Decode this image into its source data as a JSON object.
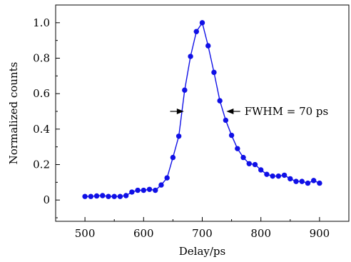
{
  "chart_data": {
    "type": "scatter",
    "title": "",
    "xlabel": "Delay/ps",
    "ylabel": "Normalized counts",
    "xlim": [
      450,
      950
    ],
    "ylim": [
      -0.12,
      1.1
    ],
    "x_ticks": [
      500,
      600,
      700,
      800,
      900
    ],
    "x_tick_labels": [
      "500",
      "600",
      "700",
      "800",
      "900"
    ],
    "y_ticks": [
      0,
      0.2,
      0.4,
      0.6,
      0.8,
      1.0
    ],
    "y_tick_labels": [
      "0",
      "0.2",
      "0.4",
      "0.6",
      "0.8",
      "1.0"
    ],
    "grid": false,
    "legend": "none",
    "series": [
      {
        "marker_color": "#1010e6",
        "line_color": "#1010e6",
        "connect_with_line": true,
        "x": [
          500,
          510,
          520,
          530,
          540,
          550,
          560,
          570,
          580,
          590,
          600,
          610,
          620,
          630,
          640,
          650,
          660,
          670,
          680,
          690,
          700,
          710,
          720,
          730,
          740,
          750,
          760,
          770,
          780,
          790,
          800,
          810,
          820,
          830,
          840,
          850,
          860,
          870,
          880,
          890,
          900
        ],
        "y": [
          0.02,
          0.02,
          0.023,
          0.025,
          0.02,
          0.02,
          0.02,
          0.025,
          0.045,
          0.055,
          0.055,
          0.06,
          0.055,
          0.085,
          0.125,
          0.24,
          0.36,
          0.62,
          0.81,
          0.95,
          1.0,
          0.87,
          0.72,
          0.56,
          0.45,
          0.365,
          0.29,
          0.24,
          0.205,
          0.2,
          0.17,
          0.145,
          0.135,
          0.135,
          0.14,
          0.12,
          0.105,
          0.105,
          0.095,
          0.11,
          0.095
        ]
      }
    ],
    "annotations": [
      {
        "text": "FWHM = 70 ps",
        "half_max": 0.5,
        "left_x": 670,
        "right_x": 740,
        "arrow_left_from_x": 655,
        "arrow_right_from_x": 755
      }
    ]
  }
}
